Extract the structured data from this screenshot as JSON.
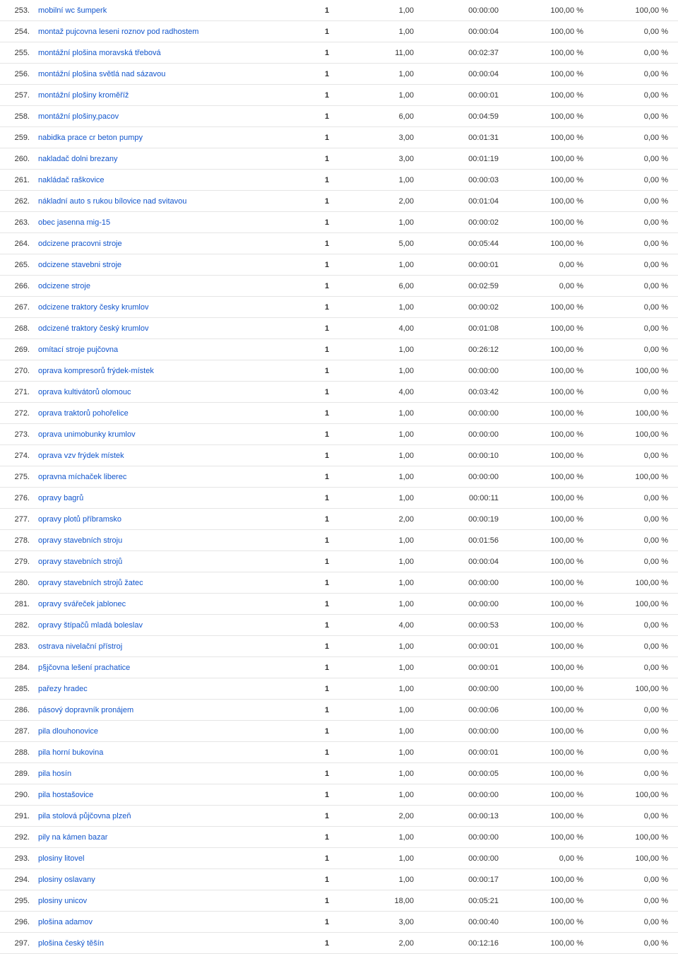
{
  "table": {
    "link_color": "#1155cc",
    "text_color": "#333333",
    "border_color": "#e5e5e5",
    "font_size": 11,
    "columns": [
      "index",
      "term",
      "visits",
      "pages",
      "duration",
      "bounce",
      "exit"
    ],
    "rows": [
      {
        "n": "253.",
        "term": "mobilní wc šumperk",
        "c1": "1",
        "c2": "1,00",
        "c3": "00:00:00",
        "c4": "100,00 %",
        "c5": "100,00 %"
      },
      {
        "n": "254.",
        "term": "montaž pujcovna leseni roznov pod radhostem",
        "c1": "1",
        "c2": "1,00",
        "c3": "00:00:04",
        "c4": "100,00 %",
        "c5": "0,00 %"
      },
      {
        "n": "255.",
        "term": "montážní plošina moravská třebová",
        "c1": "1",
        "c2": "11,00",
        "c3": "00:02:37",
        "c4": "100,00 %",
        "c5": "0,00 %"
      },
      {
        "n": "256.",
        "term": "montážní plošina světlá nad sázavou",
        "c1": "1",
        "c2": "1,00",
        "c3": "00:00:04",
        "c4": "100,00 %",
        "c5": "0,00 %"
      },
      {
        "n": "257.",
        "term": "montážní plošiny kroměříž",
        "c1": "1",
        "c2": "1,00",
        "c3": "00:00:01",
        "c4": "100,00 %",
        "c5": "0,00 %"
      },
      {
        "n": "258.",
        "term": "montážní plošiny,pacov",
        "c1": "1",
        "c2": "6,00",
        "c3": "00:04:59",
        "c4": "100,00 %",
        "c5": "0,00 %"
      },
      {
        "n": "259.",
        "term": "nabidka prace cr beton pumpy",
        "c1": "1",
        "c2": "3,00",
        "c3": "00:01:31",
        "c4": "100,00 %",
        "c5": "0,00 %"
      },
      {
        "n": "260.",
        "term": "nakladač dolni brezany",
        "c1": "1",
        "c2": "3,00",
        "c3": "00:01:19",
        "c4": "100,00 %",
        "c5": "0,00 %"
      },
      {
        "n": "261.",
        "term": "nakládač raškovice",
        "c1": "1",
        "c2": "1,00",
        "c3": "00:00:03",
        "c4": "100,00 %",
        "c5": "0,00 %"
      },
      {
        "n": "262.",
        "term": "nákladní auto s rukou bílovice nad svitavou",
        "c1": "1",
        "c2": "2,00",
        "c3": "00:01:04",
        "c4": "100,00 %",
        "c5": "0,00 %"
      },
      {
        "n": "263.",
        "term": "obec jasenna mig-15",
        "c1": "1",
        "c2": "1,00",
        "c3": "00:00:02",
        "c4": "100,00 %",
        "c5": "0,00 %"
      },
      {
        "n": "264.",
        "term": "odcizene pracovni stroje",
        "c1": "1",
        "c2": "5,00",
        "c3": "00:05:44",
        "c4": "100,00 %",
        "c5": "0,00 %"
      },
      {
        "n": "265.",
        "term": "odcizene stavebni stroje",
        "c1": "1",
        "c2": "1,00",
        "c3": "00:00:01",
        "c4": "0,00 %",
        "c5": "0,00 %"
      },
      {
        "n": "266.",
        "term": "odcizene stroje",
        "c1": "1",
        "c2": "6,00",
        "c3": "00:02:59",
        "c4": "0,00 %",
        "c5": "0,00 %"
      },
      {
        "n": "267.",
        "term": "odcizene traktory česky krumlov",
        "c1": "1",
        "c2": "1,00",
        "c3": "00:00:02",
        "c4": "100,00 %",
        "c5": "0,00 %"
      },
      {
        "n": "268.",
        "term": "odcizené traktory český krumlov",
        "c1": "1",
        "c2": "4,00",
        "c3": "00:01:08",
        "c4": "100,00 %",
        "c5": "0,00 %"
      },
      {
        "n": "269.",
        "term": "omítací stroje pujčovna",
        "c1": "1",
        "c2": "1,00",
        "c3": "00:26:12",
        "c4": "100,00 %",
        "c5": "0,00 %"
      },
      {
        "n": "270.",
        "term": "oprava kompresorů frýdek-místek",
        "c1": "1",
        "c2": "1,00",
        "c3": "00:00:00",
        "c4": "100,00 %",
        "c5": "100,00 %"
      },
      {
        "n": "271.",
        "term": "oprava kultivátorů olomouc",
        "c1": "1",
        "c2": "4,00",
        "c3": "00:03:42",
        "c4": "100,00 %",
        "c5": "0,00 %"
      },
      {
        "n": "272.",
        "term": "oprava traktorů pohořelice",
        "c1": "1",
        "c2": "1,00",
        "c3": "00:00:00",
        "c4": "100,00 %",
        "c5": "100,00 %"
      },
      {
        "n": "273.",
        "term": "oprava unimobunky krumlov",
        "c1": "1",
        "c2": "1,00",
        "c3": "00:00:00",
        "c4": "100,00 %",
        "c5": "100,00 %"
      },
      {
        "n": "274.",
        "term": "oprava vzv frýdek místek",
        "c1": "1",
        "c2": "1,00",
        "c3": "00:00:10",
        "c4": "100,00 %",
        "c5": "0,00 %"
      },
      {
        "n": "275.",
        "term": "opravna míchaček liberec",
        "c1": "1",
        "c2": "1,00",
        "c3": "00:00:00",
        "c4": "100,00 %",
        "c5": "100,00 %"
      },
      {
        "n": "276.",
        "term": "opravy bagrů",
        "c1": "1",
        "c2": "1,00",
        "c3": "00:00:11",
        "c4": "100,00 %",
        "c5": "0,00 %"
      },
      {
        "n": "277.",
        "term": "opravy plotů příbramsko",
        "c1": "1",
        "c2": "2,00",
        "c3": "00:00:19",
        "c4": "100,00 %",
        "c5": "0,00 %"
      },
      {
        "n": "278.",
        "term": "opravy stavebních stroju",
        "c1": "1",
        "c2": "1,00",
        "c3": "00:01:56",
        "c4": "100,00 %",
        "c5": "0,00 %"
      },
      {
        "n": "279.",
        "term": "opravy stavebních strojů",
        "c1": "1",
        "c2": "1,00",
        "c3": "00:00:04",
        "c4": "100,00 %",
        "c5": "0,00 %"
      },
      {
        "n": "280.",
        "term": "opravy stavebních strojů žatec",
        "c1": "1",
        "c2": "1,00",
        "c3": "00:00:00",
        "c4": "100,00 %",
        "c5": "100,00 %"
      },
      {
        "n": "281.",
        "term": "opravy svářeček jablonec",
        "c1": "1",
        "c2": "1,00",
        "c3": "00:00:00",
        "c4": "100,00 %",
        "c5": "100,00 %"
      },
      {
        "n": "282.",
        "term": "opravy štípačů mladá boleslav",
        "c1": "1",
        "c2": "4,00",
        "c3": "00:00:53",
        "c4": "100,00 %",
        "c5": "0,00 %"
      },
      {
        "n": "283.",
        "term": "ostrava nivelační přístroj",
        "c1": "1",
        "c2": "1,00",
        "c3": "00:00:01",
        "c4": "100,00 %",
        "c5": "0,00 %"
      },
      {
        "n": "284.",
        "term": "p§jčovna lešení prachatice",
        "c1": "1",
        "c2": "1,00",
        "c3": "00:00:01",
        "c4": "100,00 %",
        "c5": "0,00 %"
      },
      {
        "n": "285.",
        "term": "pařezy hradec",
        "c1": "1",
        "c2": "1,00",
        "c3": "00:00:00",
        "c4": "100,00 %",
        "c5": "100,00 %"
      },
      {
        "n": "286.",
        "term": "pásový dopravník pronájem",
        "c1": "1",
        "c2": "1,00",
        "c3": "00:00:06",
        "c4": "100,00 %",
        "c5": "0,00 %"
      },
      {
        "n": "287.",
        "term": "pila dlouhonovice",
        "c1": "1",
        "c2": "1,00",
        "c3": "00:00:00",
        "c4": "100,00 %",
        "c5": "0,00 %"
      },
      {
        "n": "288.",
        "term": "pila horní bukovina",
        "c1": "1",
        "c2": "1,00",
        "c3": "00:00:01",
        "c4": "100,00 %",
        "c5": "0,00 %"
      },
      {
        "n": "289.",
        "term": "pila hosín",
        "c1": "1",
        "c2": "1,00",
        "c3": "00:00:05",
        "c4": "100,00 %",
        "c5": "0,00 %"
      },
      {
        "n": "290.",
        "term": "pila hostašovice",
        "c1": "1",
        "c2": "1,00",
        "c3": "00:00:00",
        "c4": "100,00 %",
        "c5": "100,00 %"
      },
      {
        "n": "291.",
        "term": "pila stolová půjčovna plzeň",
        "c1": "1",
        "c2": "2,00",
        "c3": "00:00:13",
        "c4": "100,00 %",
        "c5": "0,00 %"
      },
      {
        "n": "292.",
        "term": "pily na kámen bazar",
        "c1": "1",
        "c2": "1,00",
        "c3": "00:00:00",
        "c4": "100,00 %",
        "c5": "100,00 %"
      },
      {
        "n": "293.",
        "term": "plosiny litovel",
        "c1": "1",
        "c2": "1,00",
        "c3": "00:00:00",
        "c4": "0,00 %",
        "c5": "100,00 %"
      },
      {
        "n": "294.",
        "term": "plosiny oslavany",
        "c1": "1",
        "c2": "1,00",
        "c3": "00:00:17",
        "c4": "100,00 %",
        "c5": "0,00 %"
      },
      {
        "n": "295.",
        "term": "plosiny unicov",
        "c1": "1",
        "c2": "18,00",
        "c3": "00:05:21",
        "c4": "100,00 %",
        "c5": "0,00 %"
      },
      {
        "n": "296.",
        "term": "plošina adamov",
        "c1": "1",
        "c2": "3,00",
        "c3": "00:00:40",
        "c4": "100,00 %",
        "c5": "0,00 %"
      },
      {
        "n": "297.",
        "term": "plošina český těšín",
        "c1": "1",
        "c2": "2,00",
        "c3": "00:12:16",
        "c4": "100,00 %",
        "c5": "0,00 %"
      }
    ]
  }
}
